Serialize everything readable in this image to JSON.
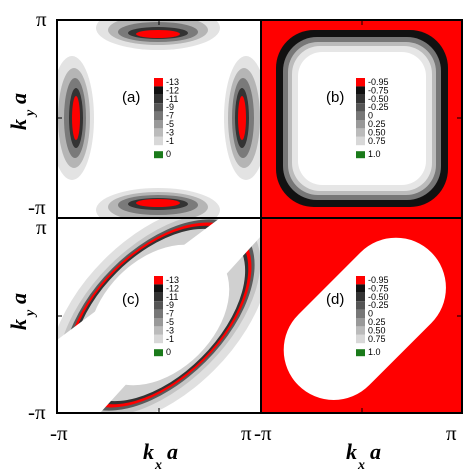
{
  "axes": {
    "x_label_main": "k",
    "x_label_sub": "x",
    "x_label_tail": "a",
    "y_label_main": "k",
    "y_label_sub": "y",
    "y_label_tail": "a",
    "tick_pi": "π",
    "tick_neg_pi": "-π"
  },
  "panels": [
    {
      "id": "a",
      "label": "(a)",
      "legend": [
        "-13",
        "-12",
        "-11",
        "-9",
        "-7",
        "-5",
        "-3",
        "-1",
        "0"
      ]
    },
    {
      "id": "b",
      "label": "(b)",
      "legend": [
        "-0.95",
        "-0.75",
        "-0.50",
        "-0.25",
        "0",
        "0.25",
        "0.50",
        "0.75",
        "1.0"
      ]
    },
    {
      "id": "c",
      "label": "(c)",
      "legend": [
        "-13",
        "-12",
        "-11",
        "-9",
        "-7",
        "-5",
        "-3",
        "-1",
        "0"
      ]
    },
    {
      "id": "d",
      "label": "(d)",
      "legend": [
        "-0.95",
        "-0.75",
        "-0.50",
        "-0.25",
        "0",
        "0.25",
        "0.50",
        "0.75",
        "1.0"
      ]
    }
  ],
  "legend_colors": {
    "top": "#ff0000",
    "steps": [
      "#111111",
      "#333333",
      "#555555",
      "#777777",
      "#999999",
      "#bbbbbb",
      "#d8d8d8"
    ],
    "bottom": "#1a7a1a"
  }
}
